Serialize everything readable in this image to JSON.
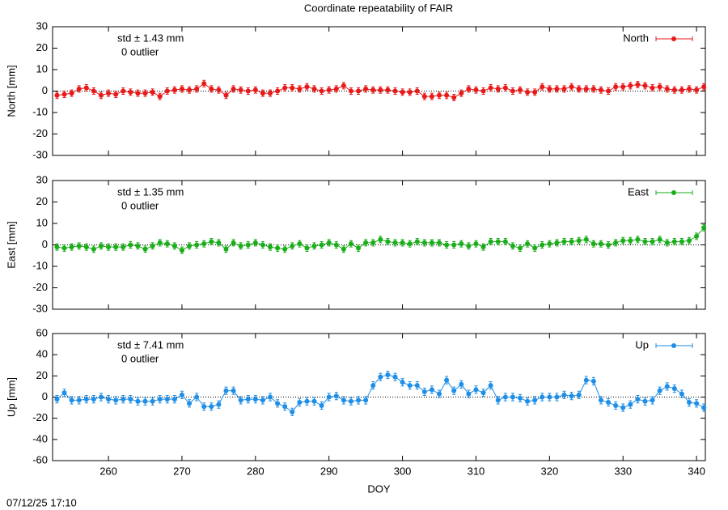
{
  "title": "Coordinate repeatability of FAIR",
  "timestamp": "07/12/25 17:10",
  "chart_data": [
    {
      "type": "line",
      "ylabel": "North [mm]",
      "annotations": [
        "std ± 1.43 mm",
        "0 outlier"
      ],
      "legend": "upper right",
      "zero_line": true,
      "xtick_labels": false,
      "xlim": [
        252.4,
        341.2
      ],
      "xticks": [
        260,
        270,
        280,
        290,
        300,
        310,
        320,
        330,
        340
      ],
      "ylim": [
        -30,
        30
      ],
      "yticks": [
        -30,
        -20,
        -10,
        0,
        10,
        20,
        30
      ],
      "x": [
        253,
        254,
        255,
        256,
        257,
        258,
        259,
        260,
        261,
        262,
        263,
        264,
        265,
        266,
        267,
        268,
        269,
        270,
        271,
        272,
        273,
        274,
        275,
        276,
        277,
        278,
        279,
        280,
        281,
        282,
        283,
        284,
        285,
        286,
        287,
        288,
        289,
        290,
        291,
        292,
        293,
        294,
        295,
        296,
        297,
        298,
        299,
        300,
        301,
        302,
        303,
        304,
        305,
        306,
        307,
        308,
        309,
        310,
        311,
        312,
        313,
        314,
        315,
        316,
        317,
        318,
        319,
        320,
        321,
        322,
        323,
        324,
        325,
        326,
        327,
        328,
        329,
        330,
        331,
        332,
        333,
        334,
        335,
        336,
        337,
        338,
        339,
        340,
        341
      ],
      "series": [
        {
          "name": "North",
          "color": "#e8191a",
          "error": 1.5,
          "values": [
            -2,
            -1.5,
            -1,
            1,
            1.5,
            0,
            -2,
            -1,
            -1.5,
            0,
            -0.5,
            -1,
            -1,
            -0.5,
            -2.5,
            0,
            0.5,
            1,
            0.5,
            1,
            3.5,
            1,
            0.5,
            -2,
            1,
            0.5,
            0,
            0.5,
            -1,
            -1,
            0,
            1.5,
            1.5,
            1,
            2,
            1,
            0,
            0.5,
            1,
            2.5,
            0,
            0,
            1,
            0.5,
            0.5,
            0.5,
            0,
            -0.5,
            -0.5,
            0,
            -2.5,
            -2.5,
            -2,
            -2,
            -3,
            -1,
            1,
            0.5,
            0,
            1.5,
            1,
            1.5,
            0,
            0.5,
            -0.5,
            -0.5,
            2,
            1,
            1,
            1,
            2,
            1,
            1,
            1,
            0.5,
            0,
            2,
            2,
            2.5,
            3,
            2.5,
            1.5,
            2,
            1,
            0.5,
            0.5,
            1,
            0.5,
            2
          ]
        }
      ]
    },
    {
      "type": "line",
      "ylabel": "East [mm]",
      "annotations": [
        "std ± 1.35 mm",
        "0 outlier"
      ],
      "legend": "upper right",
      "zero_line": true,
      "xtick_labels": false,
      "xlim": [
        252.4,
        341.2
      ],
      "xticks": [
        260,
        270,
        280,
        290,
        300,
        310,
        320,
        330,
        340
      ],
      "ylim": [
        -30,
        30
      ],
      "yticks": [
        -30,
        -20,
        -10,
        0,
        10,
        20,
        30
      ],
      "x": [
        253,
        254,
        255,
        256,
        257,
        258,
        259,
        260,
        261,
        262,
        263,
        264,
        265,
        266,
        267,
        268,
        269,
        270,
        271,
        272,
        273,
        274,
        275,
        276,
        277,
        278,
        279,
        280,
        281,
        282,
        283,
        284,
        285,
        286,
        287,
        288,
        289,
        290,
        291,
        292,
        293,
        294,
        295,
        296,
        297,
        298,
        299,
        300,
        301,
        302,
        303,
        304,
        305,
        306,
        307,
        308,
        309,
        310,
        311,
        312,
        313,
        314,
        315,
        316,
        317,
        318,
        319,
        320,
        321,
        322,
        323,
        324,
        325,
        326,
        327,
        328,
        329,
        330,
        331,
        332,
        333,
        334,
        335,
        336,
        337,
        338,
        339,
        340,
        341
      ],
      "series": [
        {
          "name": "East",
          "color": "#1aae1a",
          "error": 1.5,
          "values": [
            -1,
            -1.5,
            -1,
            -0.5,
            -1,
            -2,
            -0.5,
            -1,
            -1,
            -1,
            0,
            -0.5,
            -2,
            -0.5,
            1,
            0.5,
            -0.5,
            -2.5,
            -0.5,
            0,
            0.5,
            1.5,
            1,
            -2,
            1,
            -0.5,
            0,
            1,
            0,
            -1,
            -1.5,
            -2,
            -0.5,
            0.5,
            -1.5,
            -0.5,
            0,
            1,
            0,
            -2,
            0.5,
            -1.5,
            1,
            1,
            2.5,
            1.5,
            1,
            1,
            0.5,
            1.5,
            1,
            1,
            1,
            0,
            0,
            0.5,
            -0.5,
            0.5,
            -1,
            1.5,
            1.5,
            1.5,
            -0.5,
            -1.5,
            0.5,
            -1.5,
            0,
            0.5,
            1,
            1.5,
            1.5,
            2,
            2.5,
            0.5,
            0.5,
            0,
            1,
            2,
            2,
            2.5,
            1.5,
            1.5,
            2.5,
            1,
            1.5,
            1.5,
            2,
            4,
            8
          ]
        }
      ]
    },
    {
      "type": "line",
      "ylabel": "Up [mm]",
      "xlabel": "DOY",
      "annotations": [
        "std ± 7.41 mm",
        "0 outlier"
      ],
      "legend": "upper right",
      "zero_line": true,
      "xtick_labels": true,
      "xlim": [
        252.4,
        341.2
      ],
      "xticks": [
        260,
        270,
        280,
        290,
        300,
        310,
        320,
        330,
        340
      ],
      "ylim": [
        -60,
        60
      ],
      "yticks": [
        -60,
        -40,
        -20,
        0,
        20,
        40,
        60
      ],
      "x": [
        253,
        254,
        255,
        256,
        257,
        258,
        259,
        260,
        261,
        262,
        263,
        264,
        265,
        266,
        267,
        268,
        269,
        270,
        271,
        272,
        273,
        274,
        275,
        276,
        277,
        278,
        279,
        280,
        281,
        282,
        283,
        284,
        285,
        286,
        287,
        288,
        289,
        290,
        291,
        292,
        293,
        294,
        295,
        296,
        297,
        298,
        299,
        300,
        301,
        302,
        303,
        304,
        305,
        306,
        307,
        308,
        309,
        310,
        311,
        312,
        313,
        314,
        315,
        316,
        317,
        318,
        319,
        320,
        321,
        322,
        323,
        324,
        325,
        326,
        327,
        328,
        329,
        330,
        331,
        332,
        333,
        334,
        335,
        336,
        337,
        338,
        339,
        340,
        341
      ],
      "series": [
        {
          "name": "Up",
          "color": "#1e8ee6",
          "error": 3.5,
          "values": [
            -2,
            4,
            -3,
            -3,
            -2,
            -2,
            0,
            -2,
            -3,
            -2,
            -2,
            -4,
            -4,
            -4,
            -2,
            -2,
            -2,
            2,
            -6,
            0,
            -9,
            -9,
            -7,
            6,
            6,
            -3,
            -2,
            -2,
            -3,
            0,
            -6,
            -9,
            -14,
            -5,
            -4,
            -4,
            -8,
            0,
            1,
            -3,
            -4,
            -3,
            -3,
            11,
            19,
            21,
            19,
            14,
            11,
            11,
            5,
            7,
            3,
            16,
            6,
            12,
            3,
            7,
            4,
            11,
            -3,
            0,
            0,
            -1,
            -4,
            -3,
            0,
            0,
            0,
            2,
            1,
            2,
            16,
            15,
            -3,
            -5,
            -8,
            -10,
            -7,
            -2,
            -4,
            -3,
            6,
            10,
            8,
            3,
            -5,
            -6,
            -10
          ]
        }
      ]
    }
  ]
}
